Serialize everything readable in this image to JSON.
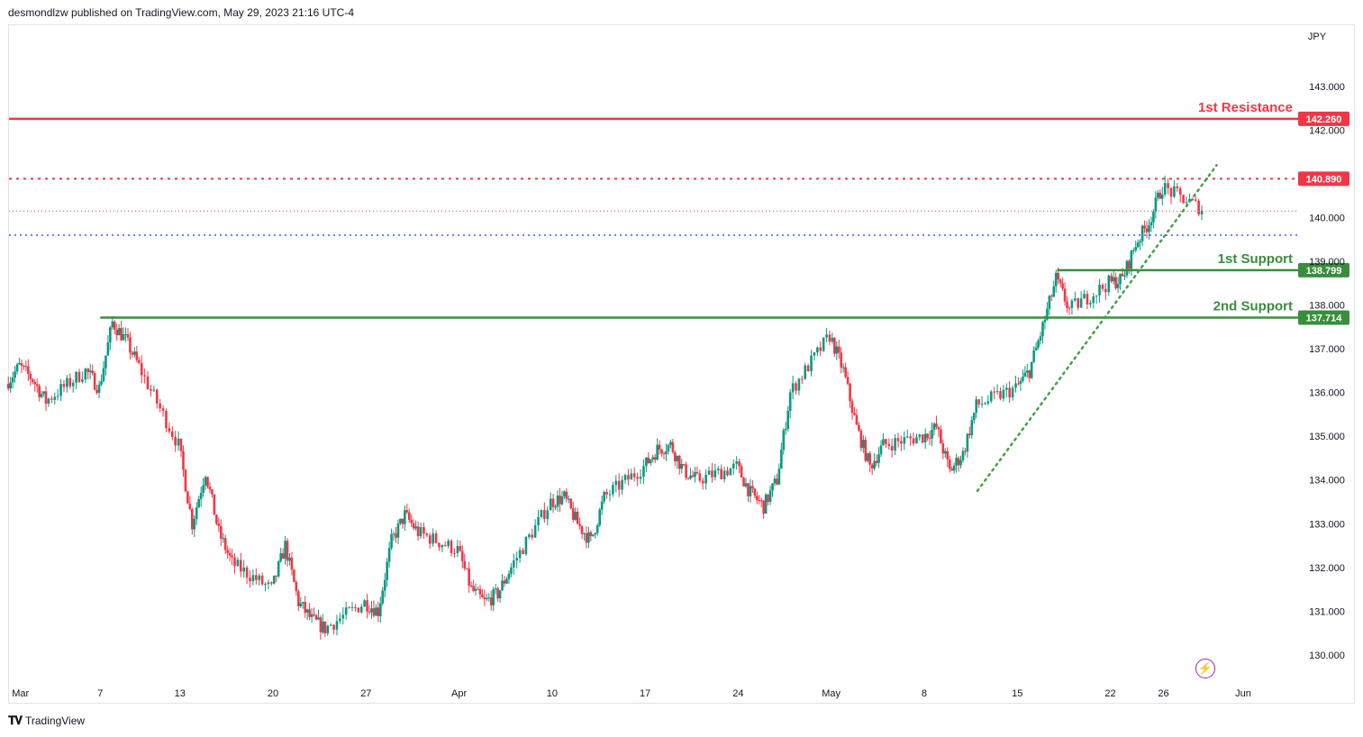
{
  "header": {
    "publish_line": "desmondlzw published on TradingView.com, May 29, 2023 21:16 UTC-4"
  },
  "footer": {
    "brand": "TradingView"
  },
  "colors": {
    "up": "#089981",
    "down": "#f23645",
    "support": "#388e3c",
    "resistance": "#f23645",
    "blue_dotted": "#2962ff",
    "trend": "#43a047"
  },
  "icons": {
    "bolt": "lightning-icon",
    "logo": "tradingview-logo-icon"
  },
  "chart_data": {
    "type": "candlestick",
    "currency_label": "JPY",
    "ylim": [
      129.4,
      144.4
    ],
    "y_ticks": [
      "143.000",
      "142.000",
      "140.000",
      "139.000",
      "138.000",
      "137.000",
      "136.000",
      "135.000",
      "134.000",
      "133.000",
      "132.000",
      "131.000",
      "130.000"
    ],
    "x_ticks": [
      "Mar",
      "7",
      "13",
      "20",
      "27",
      "Apr",
      "10",
      "17",
      "24",
      "May",
      "8",
      "15",
      "22",
      "26",
      "Jun"
    ],
    "levels": [
      {
        "name": "1st Resistance",
        "value": 142.26,
        "tag": "142.260",
        "style": "solid",
        "color": "#f23645"
      },
      {
        "name": "",
        "value": 140.89,
        "tag": "140.890",
        "style": "dotted",
        "color": "#f23645"
      },
      {
        "name": "1st Support",
        "value": 138.799,
        "tag": "138.799",
        "style": "solid",
        "color": "#388e3c"
      },
      {
        "name": "2nd Support",
        "value": 137.714,
        "tag": "137.714",
        "style": "solid",
        "color": "#388e3c"
      }
    ],
    "blue_dotted_level": 139.6,
    "last_price_line": 140.15,
    "trendline": {
      "from": [
        "May 12",
        133.75
      ],
      "to": [
        "May 30",
        141.2
      ]
    },
    "price_path": [
      [
        "Feb 28",
        136.2
      ],
      [
        "Mar 1",
        136.6
      ],
      [
        "Mar 2",
        136.3
      ],
      [
        "Mar 3",
        135.8
      ],
      [
        "Mar 6",
        136.5
      ],
      [
        "Mar 7",
        136.1
      ],
      [
        "Mar 8",
        137.6
      ],
      [
        "Mar 9",
        137.2
      ],
      [
        "Mar 10",
        136.6
      ],
      [
        "Mar 13",
        134.8
      ],
      [
        "Mar 14",
        133.0
      ],
      [
        "Mar 15",
        134.2
      ],
      [
        "Mar 16",
        132.8
      ],
      [
        "Mar 17",
        132.1
      ],
      [
        "Mar 20",
        131.5
      ],
      [
        "Mar 21",
        132.5
      ],
      [
        "Mar 22",
        131.2
      ],
      [
        "Mar 23",
        130.8
      ],
      [
        "Mar 24",
        130.6
      ],
      [
        "Mar 27",
        131.2
      ],
      [
        "Mar 28",
        131.0
      ],
      [
        "Mar 29",
        132.6
      ],
      [
        "Mar 30",
        133.2
      ],
      [
        "Mar 31",
        132.8
      ],
      [
        "Apr 3",
        132.4
      ],
      [
        "Apr 4",
        131.5
      ],
      [
        "Apr 5",
        131.2
      ],
      [
        "Apr 6",
        131.4
      ],
      [
        "Apr 7",
        132.0
      ],
      [
        "Apr 10",
        133.5
      ],
      [
        "Apr 11",
        133.6
      ],
      [
        "Apr 12",
        133.0
      ],
      [
        "Apr 13",
        132.6
      ],
      [
        "Apr 14",
        133.6
      ],
      [
        "Apr 17",
        134.3
      ],
      [
        "Apr 18",
        134.7
      ],
      [
        "Apr 19",
        134.8
      ],
      [
        "Apr 20",
        134.2
      ],
      [
        "Apr 21",
        134.0
      ],
      [
        "Apr 24",
        134.3
      ],
      [
        "Apr 25",
        133.7
      ],
      [
        "Apr 26",
        133.4
      ],
      [
        "Apr 27",
        134.0
      ],
      [
        "Apr 28",
        136.0
      ],
      [
        "May 1",
        137.3
      ],
      [
        "May 2",
        136.5
      ],
      [
        "May 3",
        135.2
      ],
      [
        "May 4",
        134.3
      ],
      [
        "May 5",
        134.8
      ],
      [
        "May 8",
        135.0
      ],
      [
        "May 9",
        135.2
      ],
      [
        "May 10",
        134.2
      ],
      [
        "May 11",
        134.6
      ],
      [
        "May 12",
        135.7
      ],
      [
        "May 15",
        136.1
      ],
      [
        "May 16",
        136.5
      ],
      [
        "May 17",
        137.5
      ],
      [
        "May 18",
        138.6
      ],
      [
        "May 19",
        137.9
      ],
      [
        "May 22",
        138.5
      ],
      [
        "May 23",
        138.6
      ],
      [
        "May 24",
        139.4
      ],
      [
        "May 25",
        139.9
      ],
      [
        "May 26",
        140.7
      ],
      [
        "May 29",
        140.2
      ]
    ]
  }
}
